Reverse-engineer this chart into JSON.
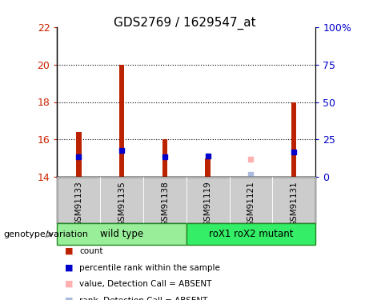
{
  "title": "GDS2769 / 1629547_at",
  "samples": [
    "GSM91133",
    "GSM91135",
    "GSM91138",
    "GSM91119",
    "GSM91121",
    "GSM91131"
  ],
  "ylim_left": [
    14,
    22
  ],
  "ylim_right": [
    0,
    100
  ],
  "yticks_left": [
    14,
    16,
    18,
    20,
    22
  ],
  "yticks_right": [
    0,
    25,
    50,
    75,
    100
  ],
  "ytick_labels_right": [
    "0",
    "25",
    "50",
    "75",
    "100%"
  ],
  "red_values": [
    16.4,
    20.0,
    16.0,
    15.0,
    14.07,
    18.0
  ],
  "blue_values": [
    15.07,
    15.42,
    15.07,
    15.12,
    null,
    15.32
  ],
  "absent_value": [
    null,
    null,
    null,
    null,
    14.95,
    null
  ],
  "absent_rank": [
    null,
    null,
    null,
    null,
    14.12,
    null
  ],
  "bar_bottom": 14,
  "red_color": "#bb2200",
  "blue_color": "#0000cc",
  "absent_value_color": "#ffb0b0",
  "absent_rank_color": "#aabbdd",
  "group1_label": "wild type",
  "group2_label": "roX1 roX2 mutant",
  "group1_color": "#99ee99",
  "group2_color": "#33ee66",
  "sample_bg_color": "#cccccc",
  "label_color": "#cc2200",
  "right_label_color": "#0000cc",
  "genotype_label": "genotype/variation",
  "legend_items": [
    {
      "label": "count",
      "color": "#bb2200"
    },
    {
      "label": "percentile rank within the sample",
      "color": "#0000cc"
    },
    {
      "label": "value, Detection Call = ABSENT",
      "color": "#ffb0b0"
    },
    {
      "label": "rank, Detection Call = ABSENT",
      "color": "#aabbdd"
    }
  ],
  "bar_width": 0.12,
  "blue_marker_size": 4.5,
  "absent_marker_size": 4.0
}
